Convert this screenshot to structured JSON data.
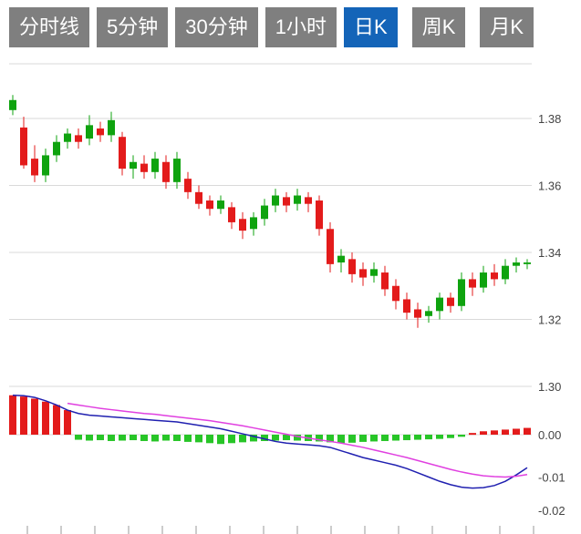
{
  "tabs": [
    {
      "label": "分时线",
      "active": false
    },
    {
      "label": "5分钟",
      "active": false
    },
    {
      "label": "30分钟",
      "active": false
    },
    {
      "label": "1小时",
      "active": false
    },
    {
      "label": "日K",
      "active": true
    },
    {
      "label": "周K",
      "active": false
    },
    {
      "label": "月K",
      "active": false
    }
  ],
  "colors": {
    "tab_bg": "#7f7f7f",
    "tab_active_bg": "#1464b8",
    "tab_text": "#ffffff"
  },
  "chart_data": {
    "type": "candlestick",
    "title": "",
    "xlabel": "",
    "ylabel": "",
    "price_axis": {
      "ticks": [
        1.38,
        1.36,
        1.34,
        1.32,
        1.3
      ],
      "range_top": 1.396,
      "range_bottom": 1.296,
      "side": "right"
    },
    "macd_axis": {
      "ticks": [
        0.0,
        -0.01,
        -0.02
      ],
      "side": "right"
    },
    "colors": {
      "up": "#0fa30f",
      "down": "#e31b1b",
      "hist_pos": "#e31b1b",
      "hist_neg": "#27c527",
      "dif_line": "#2020b0",
      "dea_line": "#e040e0",
      "grid": "#d9d9d9",
      "axis_text": "#444444",
      "bottom_tick": "#999999"
    },
    "candles": [
      [
        1.3825,
        1.387,
        1.381,
        1.3855
      ],
      [
        1.3773,
        1.3805,
        1.365,
        1.366
      ],
      [
        1.368,
        1.372,
        1.361,
        1.363
      ],
      [
        1.363,
        1.371,
        1.361,
        1.369
      ],
      [
        1.369,
        1.375,
        1.367,
        1.373
      ],
      [
        1.373,
        1.377,
        1.371,
        1.3755
      ],
      [
        1.375,
        1.377,
        1.371,
        1.373
      ],
      [
        1.374,
        1.381,
        1.372,
        1.378
      ],
      [
        1.377,
        1.379,
        1.373,
        1.375
      ],
      [
        1.375,
        1.382,
        1.373,
        1.3795
      ],
      [
        1.3745,
        1.376,
        1.363,
        1.365
      ],
      [
        1.365,
        1.369,
        1.362,
        1.367
      ],
      [
        1.3665,
        1.369,
        1.362,
        1.364
      ],
      [
        1.364,
        1.37,
        1.362,
        1.368
      ],
      [
        1.367,
        1.369,
        1.359,
        1.361
      ],
      [
        1.361,
        1.37,
        1.359,
        1.368
      ],
      [
        1.362,
        1.364,
        1.356,
        1.358
      ],
      [
        1.358,
        1.36,
        1.353,
        1.3545
      ],
      [
        1.3555,
        1.357,
        1.351,
        1.353
      ],
      [
        1.353,
        1.357,
        1.3515,
        1.3555
      ],
      [
        1.3535,
        1.355,
        1.347,
        1.349
      ],
      [
        1.35,
        1.352,
        1.344,
        1.3465
      ],
      [
        1.347,
        1.352,
        1.345,
        1.3505
      ],
      [
        1.35,
        1.356,
        1.348,
        1.354
      ],
      [
        1.354,
        1.359,
        1.352,
        1.357
      ],
      [
        1.3565,
        1.358,
        1.352,
        1.354
      ],
      [
        1.3545,
        1.359,
        1.3525,
        1.357
      ],
      [
        1.3565,
        1.358,
        1.352,
        1.3545
      ],
      [
        1.3555,
        1.357,
        1.345,
        1.347
      ],
      [
        1.347,
        1.349,
        1.334,
        1.3365
      ],
      [
        1.337,
        1.341,
        1.334,
        1.339
      ],
      [
        1.338,
        1.34,
        1.331,
        1.3335
      ],
      [
        1.335,
        1.337,
        1.33,
        1.3325
      ],
      [
        1.333,
        1.337,
        1.331,
        1.335
      ],
      [
        1.334,
        1.336,
        1.327,
        1.329
      ],
      [
        1.33,
        1.332,
        1.323,
        1.3255
      ],
      [
        1.326,
        1.328,
        1.32,
        1.322
      ],
      [
        1.323,
        1.325,
        1.3175,
        1.3205
      ],
      [
        1.321,
        1.324,
        1.319,
        1.3225
      ],
      [
        1.3225,
        1.328,
        1.32,
        1.3265
      ],
      [
        1.3265,
        1.328,
        1.322,
        1.324
      ],
      [
        1.324,
        1.334,
        1.3225,
        1.332
      ],
      [
        1.332,
        1.334,
        1.327,
        1.3295
      ],
      [
        1.3295,
        1.336,
        1.328,
        1.334
      ],
      [
        1.334,
        1.3365,
        1.33,
        1.332
      ],
      [
        1.332,
        1.338,
        1.3305,
        1.336
      ],
      [
        1.336,
        1.3385,
        1.334,
        1.337
      ],
      [
        1.3365,
        1.338,
        1.335,
        1.337
      ]
    ],
    "macd": {
      "hist": [
        0.0093,
        0.009,
        0.0085,
        0.0078,
        0.007,
        0.0058,
        -0.0012,
        -0.0014,
        -0.0013,
        -0.0015,
        -0.0014,
        -0.0013,
        -0.0015,
        -0.0016,
        -0.0014,
        -0.0015,
        -0.0017,
        -0.0018,
        -0.002,
        -0.0022,
        -0.002,
        -0.0018,
        -0.0016,
        -0.0015,
        -0.0014,
        -0.0013,
        -0.0014,
        -0.0015,
        -0.0016,
        -0.0018,
        -0.002,
        -0.0019,
        -0.0017,
        -0.0016,
        -0.0015,
        -0.0014,
        -0.0013,
        -0.0012,
        -0.0011,
        -0.001,
        -0.0008,
        -0.0005,
        0.0004,
        0.0008,
        0.001,
        0.0012,
        0.0014,
        0.0016
      ],
      "dif": [
        0.0093,
        0.0092,
        0.0088,
        0.008,
        0.007,
        0.0058,
        0.005,
        0.0046,
        0.0044,
        0.0042,
        0.004,
        0.0038,
        0.0036,
        0.0034,
        0.0032,
        0.003,
        0.0026,
        0.0022,
        0.0018,
        0.0014,
        0.0008,
        0.0002,
        -0.0004,
        -0.001,
        -0.0016,
        -0.002,
        -0.0022,
        -0.0024,
        -0.0026,
        -0.003,
        -0.0038,
        -0.0046,
        -0.0054,
        -0.006,
        -0.0066,
        -0.0072,
        -0.008,
        -0.009,
        -0.01,
        -0.011,
        -0.0118,
        -0.0124,
        -0.0126,
        -0.0125,
        -0.012,
        -0.011,
        -0.0095,
        -0.0078
      ],
      "dea": [
        null,
        null,
        null,
        null,
        null,
        0.0074,
        0.007,
        0.0066,
        0.0062,
        0.0059,
        0.0056,
        0.0053,
        0.005,
        0.0048,
        0.0045,
        0.0042,
        0.0039,
        0.0036,
        0.0033,
        0.0029,
        0.0025,
        0.0021,
        0.0016,
        0.0011,
        0.0006,
        0.0001,
        -0.0004,
        -0.0008,
        -0.0012,
        -0.0016,
        -0.002,
        -0.0025,
        -0.003,
        -0.0036,
        -0.0042,
        -0.0048,
        -0.0054,
        -0.0061,
        -0.0068,
        -0.0075,
        -0.0082,
        -0.0088,
        -0.0093,
        -0.0097,
        -0.0099,
        -0.01,
        -0.0098,
        -0.0094
      ]
    }
  }
}
